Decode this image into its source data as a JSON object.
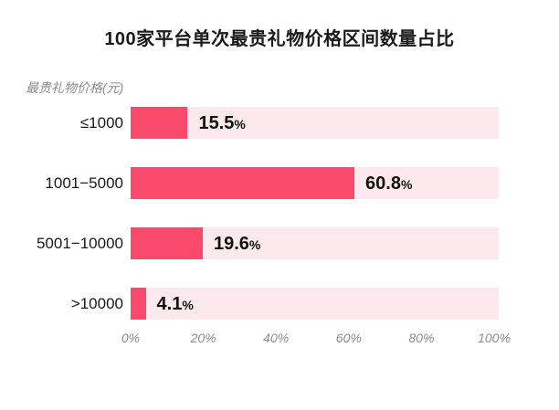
{
  "title": "100家平台单次最贵礼物价格区间数量占比",
  "axis_label": "最贵礼物价格(元)",
  "chart_data": {
    "type": "bar",
    "orientation": "horizontal",
    "title": "100家平台单次最贵礼物价格区间数量占比",
    "ylabel": "最贵礼物价格(元)",
    "categories": [
      "≤1000",
      "1001−5000",
      "5001−10000",
      ">10000"
    ],
    "values": [
      15.5,
      60.8,
      19.6,
      4.1
    ],
    "value_unit": "%",
    "xticks": [
      "0%",
      "20%",
      "40%",
      "60%",
      "80%",
      "100%"
    ],
    "xlim": [
      0,
      100
    ],
    "grid": false,
    "legend": "none",
    "colors": {
      "bar": "#FA4A6C",
      "track": "#FCE9ED",
      "title": "#1A1A1A",
      "tick": "#8C8C8C"
    }
  }
}
